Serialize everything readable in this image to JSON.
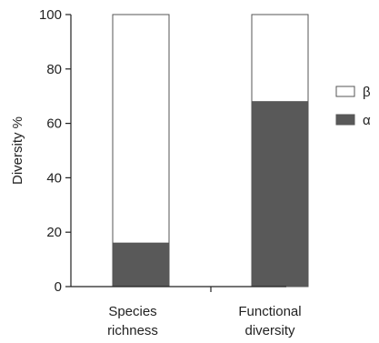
{
  "chart_data": {
    "type": "bar",
    "stacked": true,
    "normalized_percent": true,
    "title": "",
    "xlabel": "",
    "ylabel": "Diversity %",
    "ylim": [
      0,
      100
    ],
    "yticks": [
      0,
      20,
      40,
      60,
      80,
      100
    ],
    "grid": false,
    "legend_position": "right",
    "categories": [
      [
        "Species",
        "richness"
      ],
      [
        "Functional",
        "diversity"
      ]
    ],
    "series": [
      {
        "name": "α",
        "values": [
          16,
          68
        ],
        "color": "#595959"
      },
      {
        "name": "β",
        "values": [
          84,
          32
        ],
        "color": "#ffffff"
      }
    ],
    "legend_order": [
      "β",
      "α"
    ]
  }
}
